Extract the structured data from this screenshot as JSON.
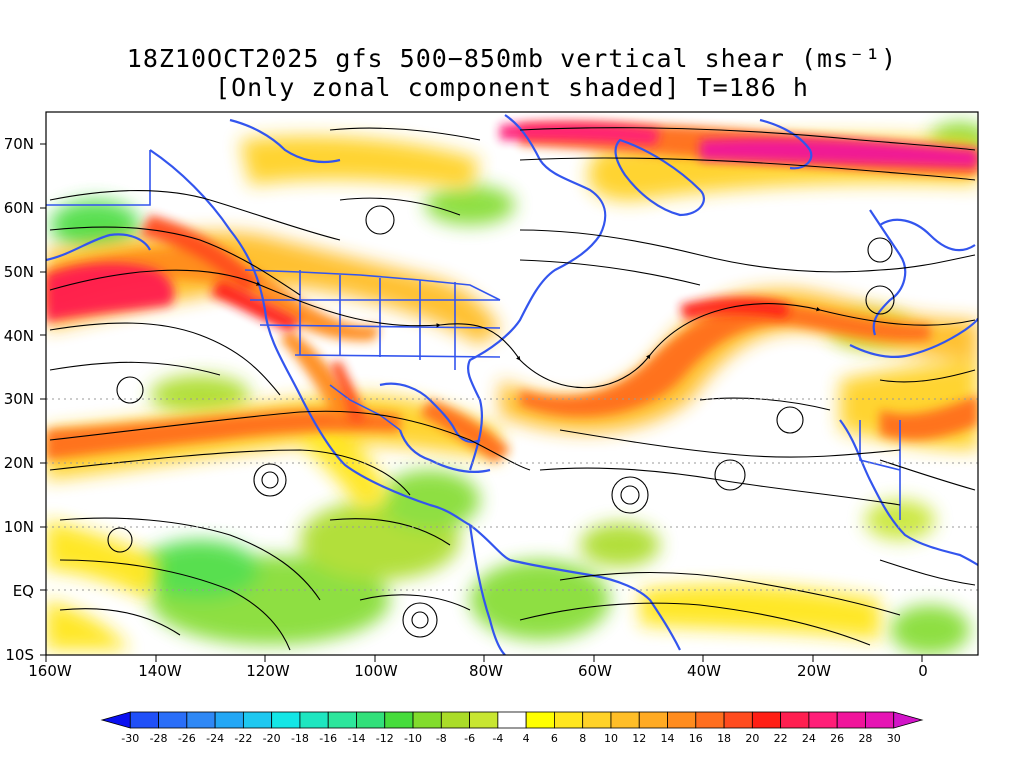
{
  "title": {
    "line1": "18Z10OCT2025 gfs 500−850mb vertical shear (ms⁻¹)",
    "line2": "[Only zonal component shaded] T=186 h"
  },
  "map": {
    "lon_labels": [
      "160W",
      "140W",
      "120W",
      "100W",
      "80W",
      "60W",
      "40W",
      "20W",
      "0"
    ],
    "lat_labels": [
      "70N",
      "60N",
      "50N",
      "40N",
      "30N",
      "20N",
      "10N",
      "EQ",
      "10S"
    ],
    "lon_range": [
      -160,
      10
    ],
    "lat_range": [
      -10,
      75
    ],
    "coastline_color": "#3355ee",
    "streamline_color": "#000000"
  },
  "colorbar": {
    "labels": [
      "-30",
      "-28",
      "-26",
      "-24",
      "-22",
      "-20",
      "-18",
      "-16",
      "-14",
      "-12",
      "-10",
      "-8",
      "-6",
      "-4",
      "4",
      "6",
      "8",
      "10",
      "12",
      "14",
      "16",
      "18",
      "20",
      "22",
      "24",
      "26",
      "28",
      "30"
    ],
    "colors": [
      "#0a10f0",
      "#2050f8",
      "#2a6ef8",
      "#2f88f5",
      "#23a7f5",
      "#1ec8f0",
      "#14e6e6",
      "#1ee6c0",
      "#2de69c",
      "#32e07a",
      "#46dc3c",
      "#82dc2d",
      "#aadc28",
      "#c8e632",
      "#ffffff",
      "#ffff00",
      "#ffe61e",
      "#ffd228",
      "#ffbe28",
      "#ffaa23",
      "#ff8c1e",
      "#ff6e1e",
      "#ff4b1e",
      "#ff1e14",
      "#ff1e50",
      "#ff1e78",
      "#f0149b",
      "#e614b4",
      "#d214c8"
    ]
  }
}
